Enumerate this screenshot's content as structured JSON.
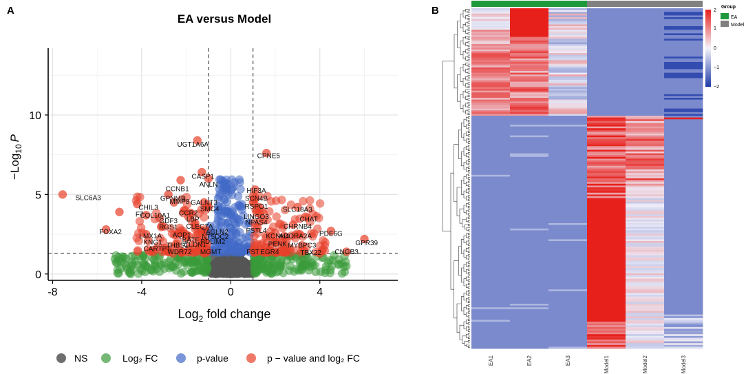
{
  "panel_a": {
    "label": "A",
    "title": "EA versus Model",
    "ylabel_main": "−Log",
    "ylabel_sub": "10",
    "ylabel_tail": "P",
    "xlabel_main": "Log",
    "xlabel_sub": "2",
    "xlabel_tail": " fold change",
    "legend": [
      {
        "label": "NS",
        "color": "#555555"
      },
      {
        "label": "Log₂ FC",
        "color": "#3a9a3a"
      },
      {
        "label": "p-value",
        "color": "#4169c7"
      },
      {
        "label": "p − value and log₂ FC",
        "color": "#e8402a"
      }
    ]
  },
  "panel_b": {
    "label": "B",
    "legend_title": "Group",
    "groups": [
      {
        "name": "EA",
        "color": "#1e9a3c"
      },
      {
        "name": "Model",
        "color": "#808080"
      }
    ],
    "color_scale_ticks": [
      "2",
      "1",
      "0",
      "−1",
      "−2"
    ],
    "samples": [
      "EA1",
      "EA2",
      "EA3",
      "Model1",
      "Model2",
      "Model3"
    ]
  },
  "chart_data": [
    {
      "type": "scatter",
      "title": "EA versus Model",
      "xlabel": "Log2 fold change",
      "ylabel": "-Log10 P",
      "xlim": [
        -8.2,
        7.5
      ],
      "ylim": [
        -0.4,
        14.2
      ],
      "xticks": [
        -8,
        -4,
        0,
        4
      ],
      "yticks": [
        0,
        5,
        10
      ],
      "fc_cutoff": 1,
      "p_cutoff": 1.3,
      "colors": {
        "ns": "#555555",
        "fc": "#3a9a3a",
        "p": "#4169c7",
        "both": "#e8402a"
      },
      "labeled_points": [
        {
          "gene": "SLC6A3",
          "x": -7.55,
          "y": 5.0,
          "lx": -6.4,
          "ly": 4.65
        },
        {
          "gene": "FOXA2",
          "x": -5.6,
          "y": 2.8,
          "lx": -5.4,
          "ly": 2.5
        },
        {
          "gene": "F7",
          "x": -5.0,
          "y": 3.9,
          "lx": -4.1,
          "ly": 3.6
        },
        {
          "gene": "CHIL3",
          "x": -4.2,
          "y": 4.4,
          "lx": -3.7,
          "ly": 4.05
        },
        {
          "gene": "COL10A1",
          "x": -3.8,
          "y": 3.7,
          "lx": -3.4,
          "ly": 3.55
        },
        {
          "gene": "GDF3",
          "x": -3.2,
          "y": 3.5,
          "lx": -2.8,
          "ly": 3.2
        },
        {
          "gene": "RGS1",
          "x": -3.1,
          "y": 3.0,
          "lx": -2.8,
          "ly": 2.8
        },
        {
          "gene": "LMX1A",
          "x": -3.8,
          "y": 2.5,
          "lx": -3.6,
          "ly": 2.25
        },
        {
          "gene": "KNG1",
          "x": -3.7,
          "y": 2.1,
          "lx": -3.5,
          "ly": 1.85
        },
        {
          "gene": "CARTPT",
          "x": -3.5,
          "y": 1.5,
          "lx": -3.3,
          "ly": 1.45
        },
        {
          "gene": "GPNMB",
          "x": -2.8,
          "y": 5.0,
          "lx": -2.6,
          "ly": 4.6
        },
        {
          "gene": "MMP8",
          "x": -2.55,
          "y": 4.5,
          "lx": -2.3,
          "ly": 4.4
        },
        {
          "gene": "CCNB1",
          "x": -2.25,
          "y": 5.9,
          "lx": -2.4,
          "ly": 5.2
        },
        {
          "gene": "CCR2",
          "x": -2.1,
          "y": 4.0,
          "lx": -1.9,
          "ly": 3.7
        },
        {
          "gene": "LBP",
          "x": -1.9,
          "y": 3.6,
          "lx": -1.7,
          "ly": 3.3
        },
        {
          "gene": "AQP1",
          "x": -2.35,
          "y": 2.6,
          "lx": -2.2,
          "ly": 2.3
        },
        {
          "gene": "BATF",
          "x": -2.0,
          "y": 2.3,
          "lx": -1.8,
          "ly": 2.0
        },
        {
          "gene": "THBS1",
          "x": -2.45,
          "y": 1.9,
          "lx": -2.4,
          "ly": 1.65
        },
        {
          "gene": "CLEC7A",
          "x": -1.6,
          "y": 3.2,
          "lx": -1.4,
          "ly": 2.85
        },
        {
          "gene": "WDR72",
          "x": -2.6,
          "y": 1.3,
          "lx": -2.3,
          "ly": 1.25
        },
        {
          "gene": "CLDN1",
          "x": -1.4,
          "y": 1.7,
          "lx": -1.6,
          "ly": 1.7
        },
        {
          "gene": "PDLIM2",
          "x": -1.15,
          "y": 2.0,
          "lx": -0.8,
          "ly": 1.9
        },
        {
          "gene": "MGMT",
          "x": -1.2,
          "y": 1.3,
          "lx": -0.9,
          "ly": 1.25
        },
        {
          "gene": "NT5DC2",
          "x": -0.85,
          "y": 2.3,
          "lx": -0.7,
          "ly": 2.2
        },
        {
          "gene": "TAGLN2",
          "x": -0.9,
          "y": 2.6,
          "lx": -0.7,
          "ly": 2.5
        },
        {
          "gene": "SMC4",
          "x": -1.0,
          "y": 4.2,
          "lx": -0.95,
          "ly": 3.95
        },
        {
          "gene": "GALNT3",
          "x": -1.2,
          "y": 4.5,
          "lx": -1.2,
          "ly": 4.35
        },
        {
          "gene": "UGT1A6A",
          "x": -1.5,
          "y": 8.4,
          "lx": -1.7,
          "ly": 8.0
        },
        {
          "gene": "CASP1",
          "x": -1.3,
          "y": 6.4,
          "lx": -1.25,
          "ly": 6.0
        },
        {
          "gene": "ANLN",
          "x": -1.0,
          "y": 6.0,
          "lx": -1.0,
          "ly": 5.5
        },
        {
          "gene": "CPNE5",
          "x": 1.6,
          "y": 7.6,
          "lx": 1.7,
          "ly": 7.3
        },
        {
          "gene": "HIF3A",
          "x": 1.1,
          "y": 5.3,
          "lx": 1.15,
          "ly": 5.1
        },
        {
          "gene": "SCN4B",
          "x": 1.0,
          "y": 4.9,
          "lx": 1.15,
          "ly": 4.6
        },
        {
          "gene": "RSPO1",
          "x": 1.0,
          "y": 4.5,
          "lx": 1.15,
          "ly": 4.1
        },
        {
          "gene": "LINGO3",
          "x": 1.3,
          "y": 3.8,
          "lx": 1.15,
          "ly": 3.45
        },
        {
          "gene": "NPAS4",
          "x": 1.3,
          "y": 3.3,
          "lx": 1.15,
          "ly": 3.1
        },
        {
          "gene": "FSTL4",
          "x": 1.2,
          "y": 2.9,
          "lx": 1.15,
          "ly": 2.6
        },
        {
          "gene": "SLC18A3",
          "x": 3.0,
          "y": 4.2,
          "lx": 3.0,
          "ly": 3.9
        },
        {
          "gene": "CHAT",
          "x": 3.35,
          "y": 3.6,
          "lx": 3.5,
          "ly": 3.3
        },
        {
          "gene": "CHRNB4",
          "x": 2.8,
          "y": 3.1,
          "lx": 3.0,
          "ly": 2.85
        },
        {
          "gene": "KCNH4",
          "x": 2.0,
          "y": 2.6,
          "lx": 2.1,
          "ly": 2.25
        },
        {
          "gene": "ADORA2A",
          "x": 3.1,
          "y": 2.5,
          "lx": 2.9,
          "ly": 2.25
        },
        {
          "gene": "PDE6G",
          "x": 4.5,
          "y": 2.7,
          "lx": 4.5,
          "ly": 2.4
        },
        {
          "gene": "PENK",
          "x": 2.5,
          "y": 2.1,
          "lx": 2.1,
          "ly": 1.75
        },
        {
          "gene": "MYBPC3",
          "x": 3.2,
          "y": 1.8,
          "lx": 3.2,
          "ly": 1.65
        },
        {
          "gene": "TBX22",
          "x": 4.0,
          "y": 1.3,
          "lx": 3.6,
          "ly": 1.2
        },
        {
          "gene": "FST",
          "x": 1.0,
          "y": 1.5,
          "lx": 1.0,
          "ly": 1.25
        },
        {
          "gene": "EGR4",
          "x": 1.7,
          "y": 1.5,
          "lx": 1.75,
          "ly": 1.25
        },
        {
          "gene": "GPR39",
          "x": 6.0,
          "y": 2.2,
          "lx": 6.1,
          "ly": 1.8
        },
        {
          "gene": "CNGB3",
          "x": 5.2,
          "y": 1.4,
          "lx": 5.2,
          "ly": 1.25
        }
      ]
    },
    {
      "type": "heatmap",
      "columns": [
        "EA1",
        "EA2",
        "EA3",
        "Model1",
        "Model2",
        "Model3"
      ],
      "groups": [
        "EA",
        "EA",
        "EA",
        "Model",
        "Model",
        "Model"
      ],
      "value_range": [
        -2,
        2
      ],
      "colorbar_ticks": [
        2,
        1,
        0,
        -1,
        -2
      ],
      "blocks": [
        {
          "rows": "top cluster (~28% of genes)",
          "EA1": "mixed up (red/white)",
          "EA2": "high (red)",
          "EA3": "mixed",
          "Model1": "low (blue)",
          "Model2": "low (blue)",
          "Model3": "low/very low"
        },
        {
          "rows": "bottom cluster (~72% of genes)",
          "EA1": "low (blue)",
          "EA2": "low (blue)",
          "EA3": "low (blue)",
          "Model1": "high (red)",
          "Model2": "mixed (red/white)",
          "Model3": "low (blue)"
        }
      ]
    }
  ]
}
